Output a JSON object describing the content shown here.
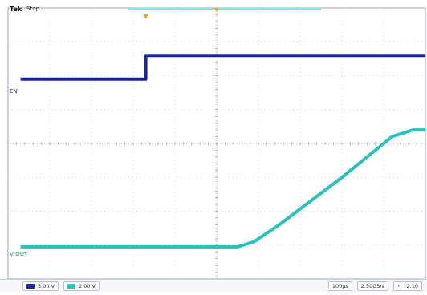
{
  "header": {
    "brand": "Tek",
    "run_state": "Stop"
  },
  "channels": {
    "ch1": {
      "label": "EN",
      "color": "#1a24a6"
    },
    "ch2": {
      "label": "V OUT",
      "color": "#29c1bb"
    }
  },
  "footer": {
    "ch1_scale": "5.00 V",
    "ch2_scale": "2.00 V",
    "timebase": "100µs",
    "sample_rate": "2.50GS/s",
    "trigger_level": "2.10"
  },
  "markers": {
    "trigger_color": "#f2a31b",
    "reference_color": "#f2a31b"
  },
  "chart_data": {
    "type": "line",
    "title": "",
    "xlabel": "",
    "ylabel": "",
    "grid": true,
    "divisions": {
      "x": 10,
      "y": 8
    },
    "xlim": [
      0,
      10
    ],
    "ylim": [
      0,
      8
    ],
    "series": [
      {
        "name": "EN",
        "color": "#1a24a6",
        "x": [
          0.3,
          3.3,
          3.3,
          10
        ],
        "y": [
          5.9,
          5.9,
          6.6,
          6.6
        ]
      },
      {
        "name": "V OUT",
        "color": "#29c1bb",
        "x": [
          0.3,
          5.5,
          5.9,
          6.5,
          8.0,
          9.2,
          9.7,
          10
        ],
        "y": [
          0.95,
          0.95,
          1.1,
          1.6,
          3.0,
          4.2,
          4.4,
          4.4
        ]
      }
    ]
  }
}
